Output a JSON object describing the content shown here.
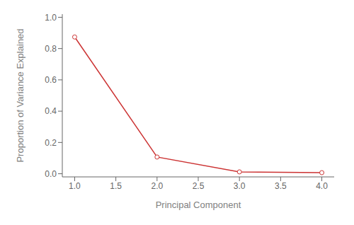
{
  "chart_data": {
    "type": "line",
    "x": [
      1,
      2,
      3,
      4
    ],
    "values": [
      0.874,
      0.107,
      0.012,
      0.007
    ],
    "color": "#cc3333",
    "marker": "circle",
    "xlabel": "Principal Component",
    "ylabel": "Proportion of Variance Explained",
    "xlim": [
      0.85,
      4.15
    ],
    "ylim": [
      -0.02,
      1.02
    ],
    "xticks": [
      {
        "value": 1.0,
        "label": "1.0"
      },
      1.5,
      {
        "value": 2.0,
        "label": "2.0"
      },
      2.5,
      {
        "value": 3.0,
        "label": "3.0"
      },
      3.5,
      {
        "value": 4.0,
        "label": "4.0"
      }
    ],
    "yticks": [
      {
        "value": 0.0,
        "label": "0.0"
      },
      0.2,
      0.4,
      0.6,
      0.8,
      {
        "value": 1.0,
        "label": "1.0"
      }
    ],
    "grid": false
  }
}
